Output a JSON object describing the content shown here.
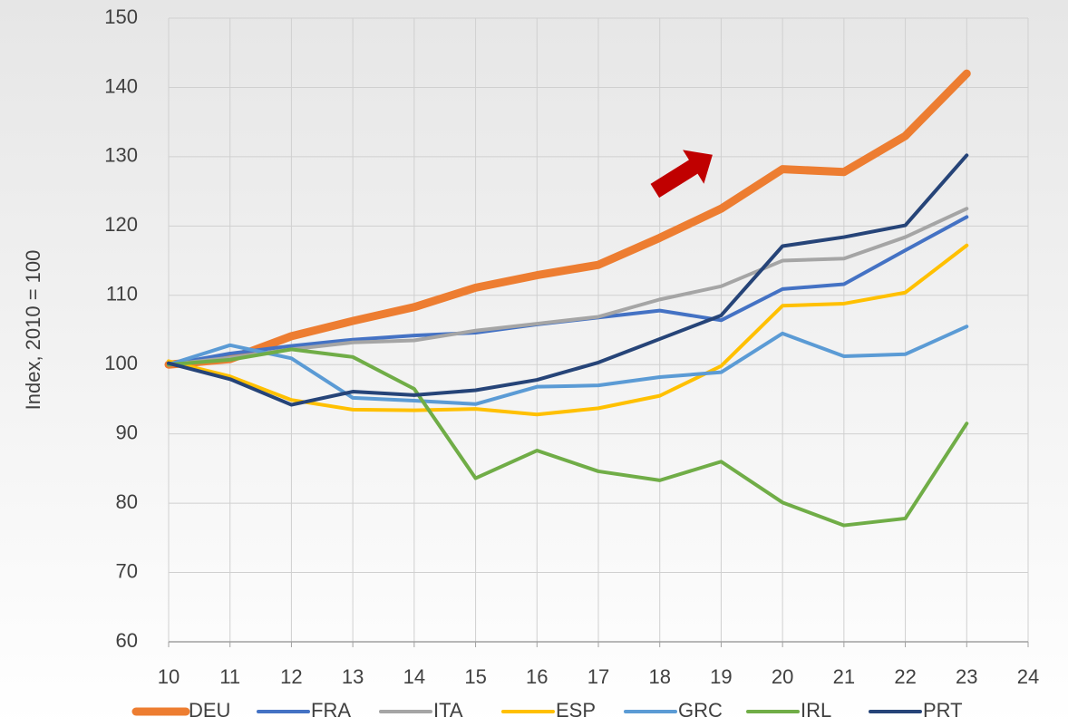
{
  "chart_data": {
    "type": "line",
    "y_label": "Index, 2010 = 100",
    "x": [
      10,
      11,
      12,
      13,
      14,
      15,
      16,
      17,
      18,
      19,
      20,
      21,
      22,
      23
    ],
    "xlim": [
      10,
      24
    ],
    "xticks": [
      10,
      11,
      12,
      13,
      14,
      15,
      16,
      17,
      18,
      19,
      20,
      21,
      22,
      23,
      24
    ],
    "ylim": [
      60,
      150
    ],
    "yticks": [
      60,
      70,
      80,
      90,
      100,
      110,
      120,
      130,
      140,
      150
    ],
    "grid": true,
    "legend": "bottom",
    "series": [
      {
        "name": "DEU",
        "color": "#ED7D31",
        "values": [
          100,
          100.8,
          104.1,
          106.3,
          108.3,
          111.1,
          112.9,
          114.4,
          118.3,
          122.5,
          128.2,
          127.8,
          133.0,
          142.0
        ]
      },
      {
        "name": "FRA",
        "color": "#4472C4",
        "values": [
          100,
          101.6,
          102.7,
          103.6,
          104.2,
          104.6,
          105.8,
          106.8,
          107.8,
          106.4,
          110.9,
          111.6,
          116.5,
          121.3
        ]
      },
      {
        "name": "ITA",
        "color": "#A5A5A5",
        "values": [
          100,
          101.0,
          102.2,
          103.2,
          103.5,
          104.9,
          105.9,
          106.9,
          109.4,
          111.3,
          115.0,
          115.3,
          118.4,
          122.5
        ]
      },
      {
        "name": "ESP",
        "color": "#FFC000",
        "values": [
          100.5,
          98.3,
          94.9,
          93.5,
          93.4,
          93.6,
          92.8,
          93.7,
          95.5,
          99.8,
          108.5,
          108.8,
          110.4,
          117.2
        ]
      },
      {
        "name": "GRC",
        "color": "#5B9BD5",
        "values": [
          100,
          102.8,
          100.9,
          95.2,
          94.8,
          94.3,
          96.8,
          97.0,
          98.2,
          98.9,
          104.5,
          101.2,
          101.5,
          105.5
        ]
      },
      {
        "name": "IRL",
        "color": "#70AD47",
        "values": [
          100,
          100.7,
          102.2,
          101.1,
          96.5,
          83.6,
          87.6,
          84.6,
          83.3,
          86.0,
          80.1,
          76.8,
          77.8,
          91.5
        ]
      },
      {
        "name": "PRT",
        "color": "#264478",
        "values": [
          100.2,
          97.9,
          94.2,
          96.1,
          95.6,
          96.3,
          97.8,
          100.3,
          103.7,
          107.1,
          117.1,
          118.4,
          120.1,
          130.2
        ]
      }
    ]
  }
}
